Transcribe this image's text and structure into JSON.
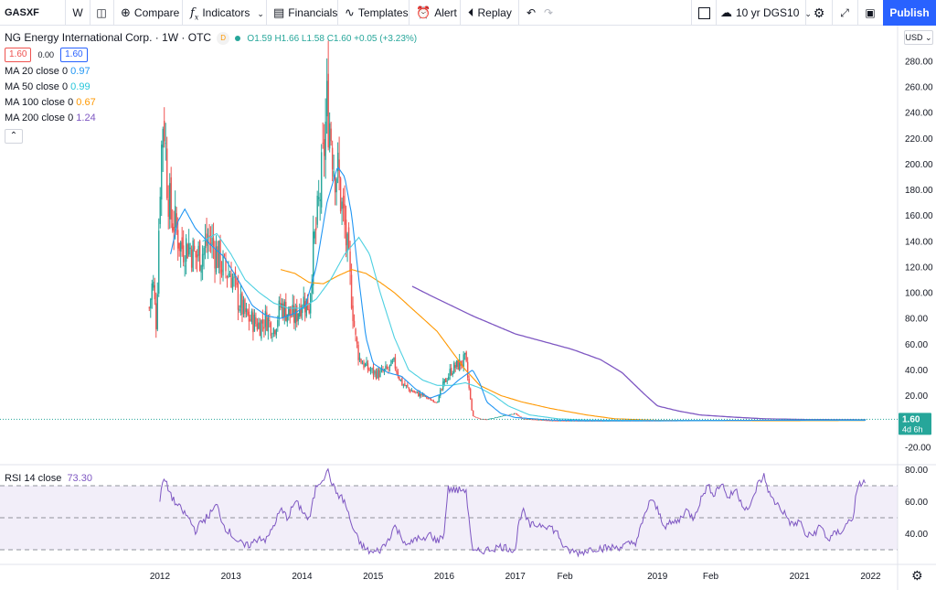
{
  "toolbar": {
    "symbol": "GASXF",
    "interval": "W",
    "compare": "Compare",
    "indicators": "Indicators",
    "financials": "Financials",
    "templates": "Templates",
    "alert": "Alert",
    "replay": "Replay",
    "compare_symbol": "10 yr DGS10",
    "publish": "Publish"
  },
  "legend": {
    "title": "NG Energy International Corp. · 1W · OTC",
    "badge": "D",
    "ohlc": "O1.59 H1.66 L1.58 C1.60 +0.05 (+3.23%)",
    "bid": "1.60",
    "spread": "0.00",
    "ask": "1.60",
    "collapse": "⌃",
    "ma": [
      {
        "label": "MA 20 close 0",
        "value": "0.97",
        "color": "#2196f3"
      },
      {
        "label": "MA 50 close 0",
        "value": "0.99",
        "color": "#4dd0e1"
      },
      {
        "label": "MA 100 close 0",
        "value": "0.67",
        "color": "#ff9800"
      },
      {
        "label": "MA 200 close 0",
        "value": "1.24",
        "color": "#7e57c2"
      }
    ]
  },
  "rsi_legend": {
    "label": "RSI 14 close",
    "value": "73.30"
  },
  "price_axis": {
    "currency": "USD",
    "last_price": "1.60",
    "countdown": "4d 6h"
  },
  "chart_data": {
    "type": "candlestick",
    "y_ticks": [
      280,
      260,
      240,
      220,
      200,
      180,
      160,
      140,
      120,
      100,
      80,
      60,
      40,
      20,
      0,
      -20
    ],
    "ylim": [
      -28,
      292
    ],
    "x_labels": [
      "2012",
      "2013",
      "2014",
      "2015",
      "2016",
      "2017",
      "Feb",
      "2019",
      "Feb",
      "2021",
      "2022"
    ],
    "colors": {
      "up": "#26a69a",
      "down": "#ef5350",
      "ma20": "#2196f3",
      "ma50": "#4dd0e1",
      "ma100": "#ff9800",
      "ma200": "#7e57c2",
      "rsi": "#7e57c2",
      "last": "#26a69a"
    },
    "price_keys": [
      [
        2011.85,
        88
      ],
      [
        2011.9,
        110
      ],
      [
        2011.95,
        75
      ],
      [
        2012.0,
        185
      ],
      [
        2012.05,
        245
      ],
      [
        2012.1,
        190
      ],
      [
        2012.15,
        160
      ],
      [
        2012.2,
        155
      ],
      [
        2012.3,
        135
      ],
      [
        2012.4,
        138
      ],
      [
        2012.5,
        128
      ],
      [
        2012.6,
        132
      ],
      [
        2012.7,
        142
      ],
      [
        2012.8,
        130
      ],
      [
        2012.9,
        118
      ],
      [
        2013.0,
        115
      ],
      [
        2013.1,
        95
      ],
      [
        2013.2,
        82
      ],
      [
        2013.3,
        78
      ],
      [
        2013.4,
        75
      ],
      [
        2013.5,
        80
      ],
      [
        2013.6,
        72
      ],
      [
        2013.7,
        90
      ],
      [
        2013.8,
        85
      ],
      [
        2013.9,
        80
      ],
      [
        2014.0,
        95
      ],
      [
        2014.1,
        90
      ],
      [
        2014.15,
        130
      ],
      [
        2014.2,
        150
      ],
      [
        2014.25,
        175
      ],
      [
        2014.3,
        205
      ],
      [
        2014.35,
        245
      ],
      [
        2014.4,
        230
      ],
      [
        2014.45,
        200
      ],
      [
        2014.5,
        195
      ],
      [
        2014.55,
        170
      ],
      [
        2014.6,
        150
      ],
      [
        2014.65,
        125
      ],
      [
        2014.7,
        95
      ],
      [
        2014.75,
        65
      ],
      [
        2014.8,
        50
      ],
      [
        2014.9,
        42
      ],
      [
        2015.0,
        38
      ],
      [
        2015.1,
        37
      ],
      [
        2015.2,
        40
      ],
      [
        2015.3,
        45
      ],
      [
        2015.4,
        30
      ],
      [
        2015.5,
        25
      ],
      [
        2015.6,
        22
      ],
      [
        2015.7,
        20
      ],
      [
        2015.8,
        17
      ],
      [
        2015.9,
        15
      ],
      [
        2016.0,
        30
      ],
      [
        2016.1,
        40
      ],
      [
        2016.2,
        44
      ],
      [
        2016.3,
        48
      ],
      [
        2016.35,
        25
      ],
      [
        2016.4,
        4
      ],
      [
        2016.5,
        2
      ],
      [
        2016.6,
        1.5
      ],
      [
        2016.8,
        4
      ],
      [
        2017.0,
        6
      ],
      [
        2017.1,
        2
      ],
      [
        2017.5,
        0.6
      ],
      [
        2018.0,
        0.4
      ],
      [
        2019.0,
        0.5
      ],
      [
        2020.0,
        0.8
      ],
      [
        2021.0,
        1.0
      ],
      [
        2021.5,
        1.1
      ],
      [
        2021.93,
        1.6
      ]
    ],
    "ma20_keys": [
      [
        2012.15,
        130
      ],
      [
        2012.25,
        155
      ],
      [
        2012.35,
        165
      ],
      [
        2012.5,
        150
      ],
      [
        2012.7,
        138
      ],
      [
        2012.9,
        128
      ],
      [
        2013.1,
        110
      ],
      [
        2013.3,
        90
      ],
      [
        2013.5,
        82
      ],
      [
        2013.7,
        80
      ],
      [
        2013.9,
        84
      ],
      [
        2014.05,
        90
      ],
      [
        2014.2,
        120
      ],
      [
        2014.35,
        170
      ],
      [
        2014.5,
        198
      ],
      [
        2014.6,
        190
      ],
      [
        2014.7,
        160
      ],
      [
        2014.8,
        110
      ],
      [
        2014.9,
        65
      ],
      [
        2015.0,
        45
      ],
      [
        2015.2,
        38
      ],
      [
        2015.4,
        35
      ],
      [
        2015.6,
        25
      ],
      [
        2015.8,
        18
      ],
      [
        2016.0,
        22
      ],
      [
        2016.2,
        32
      ],
      [
        2016.4,
        40
      ],
      [
        2016.5,
        30
      ],
      [
        2016.6,
        15
      ],
      [
        2016.8,
        6
      ],
      [
        2017.0,
        3
      ],
      [
        2017.5,
        1
      ],
      [
        2018.0,
        0.5
      ],
      [
        2019.0,
        0.5
      ],
      [
        2020.0,
        0.7
      ],
      [
        2021.0,
        0.9
      ],
      [
        2021.93,
        0.97
      ]
    ],
    "ma50_keys": [
      [
        2012.6,
        140
      ],
      [
        2012.8,
        146
      ],
      [
        2013.0,
        130
      ],
      [
        2013.2,
        110
      ],
      [
        2013.4,
        100
      ],
      [
        2013.6,
        92
      ],
      [
        2013.8,
        88
      ],
      [
        2014.0,
        88
      ],
      [
        2014.2,
        95
      ],
      [
        2014.4,
        110
      ],
      [
        2014.6,
        130
      ],
      [
        2014.8,
        143
      ],
      [
        2014.95,
        130
      ],
      [
        2015.1,
        100
      ],
      [
        2015.3,
        65
      ],
      [
        2015.5,
        40
      ],
      [
        2015.7,
        32
      ],
      [
        2015.9,
        28
      ],
      [
        2016.1,
        28
      ],
      [
        2016.3,
        30
      ],
      [
        2016.5,
        26
      ],
      [
        2016.7,
        20
      ],
      [
        2016.9,
        12
      ],
      [
        2017.2,
        5
      ],
      [
        2017.6,
        2
      ],
      [
        2018.0,
        1
      ],
      [
        2019.0,
        0.6
      ],
      [
        2020.0,
        0.7
      ],
      [
        2021.0,
        0.9
      ],
      [
        2021.93,
        0.99
      ]
    ],
    "ma100_keys": [
      [
        2013.7,
        118
      ],
      [
        2013.9,
        115
      ],
      [
        2014.1,
        108
      ],
      [
        2014.3,
        107
      ],
      [
        2014.5,
        113
      ],
      [
        2014.7,
        118
      ],
      [
        2014.9,
        115
      ],
      [
        2015.1,
        108
      ],
      [
        2015.3,
        100
      ],
      [
        2015.5,
        90
      ],
      [
        2015.7,
        80
      ],
      [
        2015.9,
        70
      ],
      [
        2016.1,
        55
      ],
      [
        2016.3,
        40
      ],
      [
        2016.5,
        28
      ],
      [
        2016.8,
        20
      ],
      [
        2017.1,
        15
      ],
      [
        2017.5,
        10
      ],
      [
        2018.0,
        5
      ],
      [
        2018.4,
        2
      ],
      [
        2019.0,
        0.8
      ],
      [
        2020.0,
        0.5
      ],
      [
        2021.0,
        0.55
      ],
      [
        2021.93,
        0.67
      ]
    ],
    "ma200_keys": [
      [
        2015.55,
        105
      ],
      [
        2015.8,
        98
      ],
      [
        2016.1,
        90
      ],
      [
        2016.4,
        82
      ],
      [
        2016.7,
        75
      ],
      [
        2017.0,
        68
      ],
      [
        2017.4,
        62
      ],
      [
        2017.8,
        56
      ],
      [
        2018.2,
        48
      ],
      [
        2018.5,
        38
      ],
      [
        2018.8,
        22
      ],
      [
        2019.0,
        12
      ],
      [
        2019.3,
        8
      ],
      [
        2019.6,
        5
      ],
      [
        2020.0,
        3.5
      ],
      [
        2020.5,
        2
      ],
      [
        2021.0,
        1.5
      ],
      [
        2021.5,
        1.3
      ],
      [
        2021.93,
        1.24
      ]
    ],
    "rsi": {
      "ylim": [
        22,
        82
      ],
      "ticks": [
        80,
        60,
        40
      ],
      "levels": [
        70,
        50,
        30
      ],
      "keys": [
        [
          2012.0,
          60
        ],
        [
          2012.05,
          75
        ],
        [
          2012.1,
          70
        ],
        [
          2012.2,
          60
        ],
        [
          2012.3,
          55
        ],
        [
          2012.4,
          50
        ],
        [
          2012.5,
          42
        ],
        [
          2012.6,
          48
        ],
        [
          2012.7,
          52
        ],
        [
          2012.8,
          58
        ],
        [
          2012.9,
          45
        ],
        [
          2013.0,
          40
        ],
        [
          2013.1,
          35
        ],
        [
          2013.2,
          32
        ],
        [
          2013.3,
          34
        ],
        [
          2013.4,
          38
        ],
        [
          2013.5,
          36
        ],
        [
          2013.6,
          45
        ],
        [
          2013.7,
          55
        ],
        [
          2013.8,
          50
        ],
        [
          2013.9,
          60
        ],
        [
          2014.0,
          55
        ],
        [
          2014.1,
          48
        ],
        [
          2014.2,
          70
        ],
        [
          2014.3,
          75
        ],
        [
          2014.35,
          80
        ],
        [
          2014.4,
          75
        ],
        [
          2014.45,
          68
        ],
        [
          2014.5,
          65
        ],
        [
          2014.6,
          60
        ],
        [
          2014.7,
          45
        ],
        [
          2014.8,
          35
        ],
        [
          2014.9,
          30
        ],
        [
          2015.0,
          28
        ],
        [
          2015.1,
          30
        ],
        [
          2015.2,
          35
        ],
        [
          2015.3,
          45
        ],
        [
          2015.4,
          38
        ],
        [
          2015.5,
          32
        ],
        [
          2015.6,
          38
        ],
        [
          2015.7,
          35
        ],
        [
          2015.8,
          40
        ],
        [
          2015.9,
          35
        ],
        [
          2016.0,
          40
        ],
        [
          2016.05,
          68
        ],
        [
          2016.2,
          67
        ],
        [
          2016.3,
          68
        ],
        [
          2016.35,
          50
        ],
        [
          2016.4,
          28
        ],
        [
          2016.5,
          29
        ],
        [
          2016.6,
          30
        ],
        [
          2016.8,
          32
        ],
        [
          2017.0,
          30
        ],
        [
          2017.05,
          47
        ],
        [
          2017.1,
          55
        ],
        [
          2017.2,
          45
        ],
        [
          2017.4,
          46
        ],
        [
          2017.5,
          44
        ],
        [
          2017.6,
          40
        ],
        [
          2017.7,
          30
        ],
        [
          2017.9,
          28
        ],
        [
          2018.1,
          31
        ],
        [
          2018.3,
          31
        ],
        [
          2018.5,
          32
        ],
        [
          2018.7,
          35
        ],
        [
          2018.8,
          48
        ],
        [
          2018.9,
          62
        ],
        [
          2019.0,
          55
        ],
        [
          2019.1,
          45
        ],
        [
          2019.3,
          48
        ],
        [
          2019.4,
          55
        ],
        [
          2019.5,
          50
        ],
        [
          2019.6,
          60
        ],
        [
          2019.7,
          70
        ],
        [
          2019.8,
          65
        ],
        [
          2019.9,
          72
        ],
        [
          2020.0,
          62
        ],
        [
          2020.1,
          68
        ],
        [
          2020.2,
          58
        ],
        [
          2020.3,
          55
        ],
        [
          2020.4,
          70
        ],
        [
          2020.5,
          76
        ],
        [
          2020.6,
          62
        ],
        [
          2020.7,
          58
        ],
        [
          2020.8,
          52
        ],
        [
          2020.9,
          45
        ],
        [
          2021.0,
          48
        ],
        [
          2021.1,
          38
        ],
        [
          2021.2,
          40
        ],
        [
          2021.3,
          45
        ],
        [
          2021.4,
          36
        ],
        [
          2021.5,
          40
        ],
        [
          2021.6,
          42
        ],
        [
          2021.7,
          48
        ],
        [
          2021.75,
          50
        ],
        [
          2021.8,
          65
        ],
        [
          2021.85,
          71
        ],
        [
          2021.93,
          73.3
        ]
      ]
    }
  }
}
